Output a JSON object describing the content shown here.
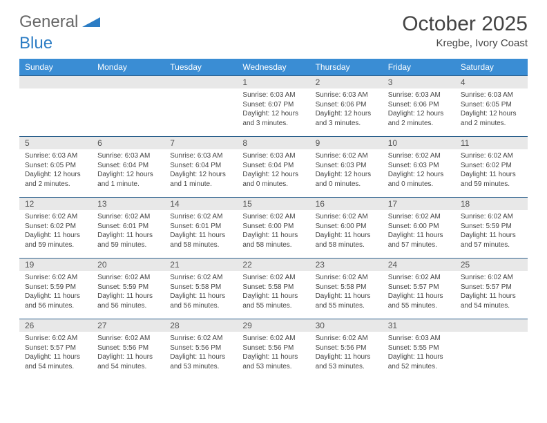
{
  "logo": {
    "word1": "General",
    "word2": "Blue"
  },
  "title": "October 2025",
  "location": "Kregbe, Ivory Coast",
  "colors": {
    "header_bg": "#3a8dd4",
    "header_text": "#ffffff",
    "day_num_bg": "#e8e8e8",
    "border": "#2b5f8c",
    "text": "#444444",
    "logo_gray": "#666666",
    "logo_blue": "#2b7cc4"
  },
  "fonts": {
    "title_size": 30,
    "location_size": 15,
    "header_size": 12,
    "daynum_size": 12,
    "content_size": 10
  },
  "weekdays": [
    "Sunday",
    "Monday",
    "Tuesday",
    "Wednesday",
    "Thursday",
    "Friday",
    "Saturday"
  ],
  "weeks": [
    [
      null,
      null,
      null,
      {
        "n": "1",
        "sunrise": "6:03 AM",
        "sunset": "6:07 PM",
        "daylight": "12 hours and 3 minutes."
      },
      {
        "n": "2",
        "sunrise": "6:03 AM",
        "sunset": "6:06 PM",
        "daylight": "12 hours and 3 minutes."
      },
      {
        "n": "3",
        "sunrise": "6:03 AM",
        "sunset": "6:06 PM",
        "daylight": "12 hours and 2 minutes."
      },
      {
        "n": "4",
        "sunrise": "6:03 AM",
        "sunset": "6:05 PM",
        "daylight": "12 hours and 2 minutes."
      }
    ],
    [
      {
        "n": "5",
        "sunrise": "6:03 AM",
        "sunset": "6:05 PM",
        "daylight": "12 hours and 2 minutes."
      },
      {
        "n": "6",
        "sunrise": "6:03 AM",
        "sunset": "6:04 PM",
        "daylight": "12 hours and 1 minute."
      },
      {
        "n": "7",
        "sunrise": "6:03 AM",
        "sunset": "6:04 PM",
        "daylight": "12 hours and 1 minute."
      },
      {
        "n": "8",
        "sunrise": "6:03 AM",
        "sunset": "6:04 PM",
        "daylight": "12 hours and 0 minutes."
      },
      {
        "n": "9",
        "sunrise": "6:02 AM",
        "sunset": "6:03 PM",
        "daylight": "12 hours and 0 minutes."
      },
      {
        "n": "10",
        "sunrise": "6:02 AM",
        "sunset": "6:03 PM",
        "daylight": "12 hours and 0 minutes."
      },
      {
        "n": "11",
        "sunrise": "6:02 AM",
        "sunset": "6:02 PM",
        "daylight": "11 hours and 59 minutes."
      }
    ],
    [
      {
        "n": "12",
        "sunrise": "6:02 AM",
        "sunset": "6:02 PM",
        "daylight": "11 hours and 59 minutes."
      },
      {
        "n": "13",
        "sunrise": "6:02 AM",
        "sunset": "6:01 PM",
        "daylight": "11 hours and 59 minutes."
      },
      {
        "n": "14",
        "sunrise": "6:02 AM",
        "sunset": "6:01 PM",
        "daylight": "11 hours and 58 minutes."
      },
      {
        "n": "15",
        "sunrise": "6:02 AM",
        "sunset": "6:00 PM",
        "daylight": "11 hours and 58 minutes."
      },
      {
        "n": "16",
        "sunrise": "6:02 AM",
        "sunset": "6:00 PM",
        "daylight": "11 hours and 58 minutes."
      },
      {
        "n": "17",
        "sunrise": "6:02 AM",
        "sunset": "6:00 PM",
        "daylight": "11 hours and 57 minutes."
      },
      {
        "n": "18",
        "sunrise": "6:02 AM",
        "sunset": "5:59 PM",
        "daylight": "11 hours and 57 minutes."
      }
    ],
    [
      {
        "n": "19",
        "sunrise": "6:02 AM",
        "sunset": "5:59 PM",
        "daylight": "11 hours and 56 minutes."
      },
      {
        "n": "20",
        "sunrise": "6:02 AM",
        "sunset": "5:59 PM",
        "daylight": "11 hours and 56 minutes."
      },
      {
        "n": "21",
        "sunrise": "6:02 AM",
        "sunset": "5:58 PM",
        "daylight": "11 hours and 56 minutes."
      },
      {
        "n": "22",
        "sunrise": "6:02 AM",
        "sunset": "5:58 PM",
        "daylight": "11 hours and 55 minutes."
      },
      {
        "n": "23",
        "sunrise": "6:02 AM",
        "sunset": "5:58 PM",
        "daylight": "11 hours and 55 minutes."
      },
      {
        "n": "24",
        "sunrise": "6:02 AM",
        "sunset": "5:57 PM",
        "daylight": "11 hours and 55 minutes."
      },
      {
        "n": "25",
        "sunrise": "6:02 AM",
        "sunset": "5:57 PM",
        "daylight": "11 hours and 54 minutes."
      }
    ],
    [
      {
        "n": "26",
        "sunrise": "6:02 AM",
        "sunset": "5:57 PM",
        "daylight": "11 hours and 54 minutes."
      },
      {
        "n": "27",
        "sunrise": "6:02 AM",
        "sunset": "5:56 PM",
        "daylight": "11 hours and 54 minutes."
      },
      {
        "n": "28",
        "sunrise": "6:02 AM",
        "sunset": "5:56 PM",
        "daylight": "11 hours and 53 minutes."
      },
      {
        "n": "29",
        "sunrise": "6:02 AM",
        "sunset": "5:56 PM",
        "daylight": "11 hours and 53 minutes."
      },
      {
        "n": "30",
        "sunrise": "6:02 AM",
        "sunset": "5:56 PM",
        "daylight": "11 hours and 53 minutes."
      },
      {
        "n": "31",
        "sunrise": "6:03 AM",
        "sunset": "5:55 PM",
        "daylight": "11 hours and 52 minutes."
      },
      null
    ]
  ],
  "labels": {
    "sunrise": "Sunrise:",
    "sunset": "Sunset:",
    "daylight": "Daylight:"
  }
}
